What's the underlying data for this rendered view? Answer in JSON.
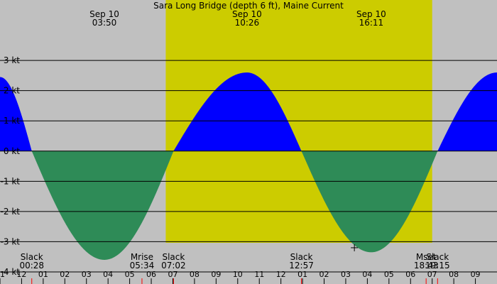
{
  "chart_data": {
    "type": "area",
    "title": "Sara Long Bridge (depth 6 ft), Maine Current",
    "unit": "kt",
    "ylim": [
      -4.4,
      5
    ],
    "xlim": [
      -1.0,
      22.0
    ],
    "y_ticks": [
      {
        "label": "3 kt",
        "value": 3
      },
      {
        "label": "2 kt",
        "value": 2
      },
      {
        "label": "1 kt",
        "value": 1
      },
      {
        "label": "0 kt",
        "value": 0
      },
      {
        "label": "-1 kt",
        "value": -1
      },
      {
        "label": "-2 kt",
        "value": -2
      },
      {
        "label": "-3 kt",
        "value": -3
      },
      {
        "label": "-4 kt",
        "value": -4
      }
    ],
    "hour_ticks": [
      {
        "label": "11",
        "hour": -1
      },
      {
        "label": "12",
        "hour": 0
      },
      {
        "label": "01",
        "hour": 1
      },
      {
        "label": "02",
        "hour": 2
      },
      {
        "label": "03",
        "hour": 3
      },
      {
        "label": "04",
        "hour": 4
      },
      {
        "label": "05",
        "hour": 5
      },
      {
        "label": "06",
        "hour": 6
      },
      {
        "label": "07",
        "hour": 7
      },
      {
        "label": "08",
        "hour": 8
      },
      {
        "label": "09",
        "hour": 9
      },
      {
        "label": "10",
        "hour": 10
      },
      {
        "label": "11",
        "hour": 11
      },
      {
        "label": "12",
        "hour": 12
      },
      {
        "label": "01",
        "hour": 13
      },
      {
        "label": "02",
        "hour": 14
      },
      {
        "label": "03",
        "hour": 15
      },
      {
        "label": "04",
        "hour": 16
      },
      {
        "label": "05",
        "hour": 17
      },
      {
        "label": "06",
        "hour": 18
      },
      {
        "label": "07",
        "hour": 19
      },
      {
        "label": "08",
        "hour": 20
      },
      {
        "label": "09",
        "hour": 21
      }
    ],
    "current": [
      {
        "hour": -1.0,
        "value": 2.45
      },
      {
        "hour": 0.47,
        "value": 0
      },
      {
        "hour": 3.83,
        "value": -3.6
      },
      {
        "hour": 7.03,
        "value": 0
      },
      {
        "hour": 10.43,
        "value": 2.6
      },
      {
        "hour": 12.95,
        "value": 0
      },
      {
        "hour": 16.18,
        "value": -3.35
      },
      {
        "hour": 19.25,
        "value": 0
      },
      {
        "hour": 22.0,
        "value": 2.6
      }
    ],
    "daylight": {
      "start_hour": 6.67,
      "end_hour": 19.0
    },
    "peaks": [
      {
        "date": "Sep 10",
        "time": "03:50",
        "hour": 3.83
      },
      {
        "date": "Sep 10",
        "time": "10:26",
        "hour": 10.43
      },
      {
        "date": "Sep 10",
        "time": "16:11",
        "hour": 16.18
      }
    ],
    "events": [
      {
        "name": "Slack",
        "time": "00:28",
        "hour": 0.47
      },
      {
        "name": "Mrise",
        "time": "05:34",
        "hour": 5.57
      },
      {
        "name": "Slack",
        "time": "07:02",
        "hour": 7.03
      },
      {
        "name": "Slack",
        "time": "12:57",
        "hour": 12.95
      },
      {
        "name": "Mset",
        "time": "18:43",
        "hour": 18.72
      },
      {
        "name": "Slack",
        "time": "19:15",
        "hour": 19.25
      }
    ],
    "marker": {
      "hour": 15.4,
      "value": -3.2
    },
    "colors": {
      "background": "#c0c0c0",
      "daylight": "#cccc00",
      "flood": "#0000ff",
      "ebb": "#2e8b57",
      "gridline": "#000000",
      "tick_red": "#ff0000"
    }
  }
}
